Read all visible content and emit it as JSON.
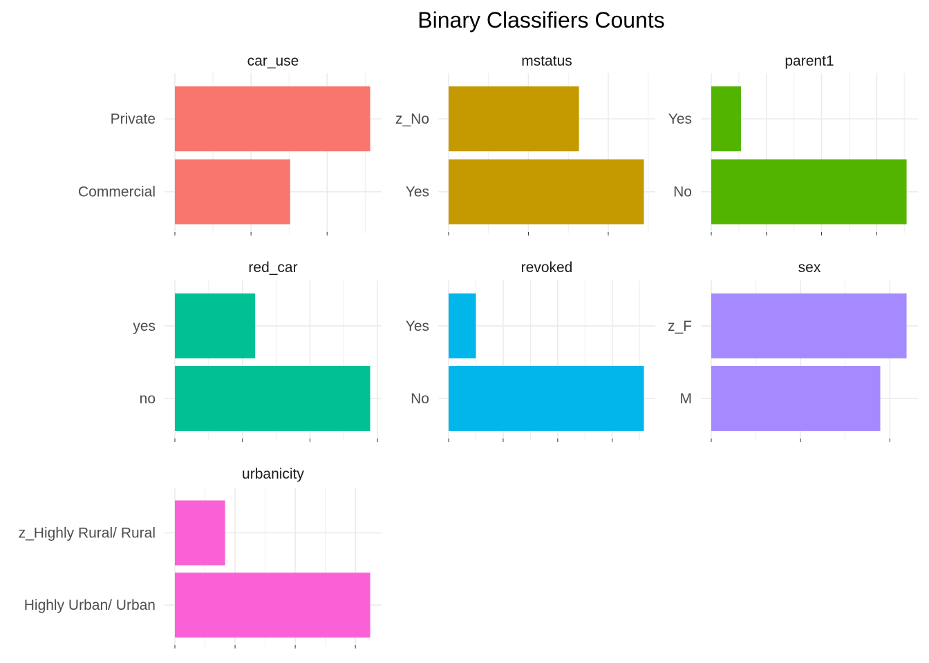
{
  "chart_data": {
    "type": "bar",
    "orientation": "horizontal",
    "title": "Binary Classifiers Counts",
    "xlabel": "",
    "ylabel": "",
    "legend": "none",
    "x_tick_labels_shown": false,
    "panels": [
      {
        "name": "car_use",
        "color": "#F8766D",
        "categories": [
          "Private",
          "Commercial"
        ],
        "values": [
          5132,
          3029
        ]
      },
      {
        "name": "mstatus",
        "color": "#C49A00",
        "categories": [
          "z_No",
          "Yes"
        ],
        "values": [
          3267,
          4894
        ]
      },
      {
        "name": "parent1",
        "color": "#53B400",
        "categories": [
          "Yes",
          "No"
        ],
        "values": [
          1077,
          7084
        ]
      },
      {
        "name": "red_car",
        "color": "#00C094",
        "categories": [
          "yes",
          "no"
        ],
        "values": [
          2378,
          5783
        ]
      },
      {
        "name": "revoked",
        "color": "#00B6EB",
        "categories": [
          "Yes",
          "No"
        ],
        "values": [
          1000,
          7161
        ]
      },
      {
        "name": "sex",
        "color": "#A58AFF",
        "categories": [
          "z_F",
          "M"
        ],
        "values": [
          4375,
          3786
        ]
      },
      {
        "name": "urbanicity",
        "color": "#FB61D7",
        "categories": [
          "z_Highly Rural/ Rural",
          "Highly Urban/ Urban"
        ],
        "values": [
          1669,
          6492
        ]
      }
    ]
  }
}
